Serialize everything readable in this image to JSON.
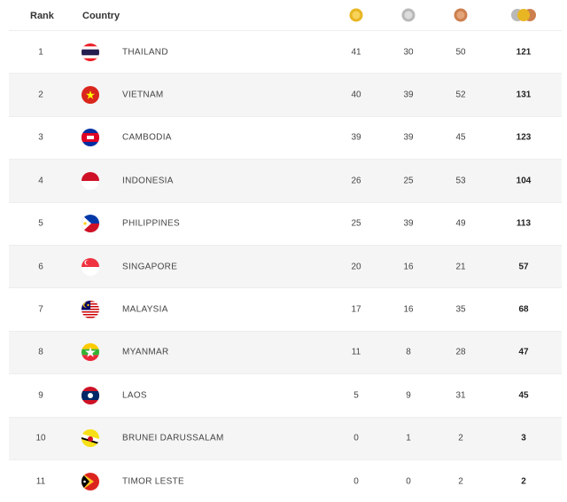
{
  "header": {
    "rank_label": "Rank",
    "country_label": "Country",
    "gold_icon": "gold-medal-icon",
    "silver_icon": "silver-medal-icon",
    "bronze_icon": "bronze-medal-icon",
    "total_icon": "total-medals-icon"
  },
  "colors": {
    "gold": "#e8b623",
    "silver": "#b9b9b9",
    "bronze": "#cd7f4e",
    "row_alt": "#f5f5f5"
  },
  "rows": [
    {
      "rank": "1",
      "country": "THAILAND",
      "flag": "thailand-flag",
      "gold": "41",
      "silver": "30",
      "bronze": "50",
      "total": "121"
    },
    {
      "rank": "2",
      "country": "VIETNAM",
      "flag": "vietnam-flag",
      "gold": "40",
      "silver": "39",
      "bronze": "52",
      "total": "131"
    },
    {
      "rank": "3",
      "country": "CAMBODIA",
      "flag": "cambodia-flag",
      "gold": "39",
      "silver": "39",
      "bronze": "45",
      "total": "123"
    },
    {
      "rank": "4",
      "country": "INDONESIA",
      "flag": "indonesia-flag",
      "gold": "26",
      "silver": "25",
      "bronze": "53",
      "total": "104"
    },
    {
      "rank": "5",
      "country": "PHILIPPINES",
      "flag": "philippines-flag",
      "gold": "25",
      "silver": "39",
      "bronze": "49",
      "total": "113"
    },
    {
      "rank": "6",
      "country": "SINGAPORE",
      "flag": "singapore-flag",
      "gold": "20",
      "silver": "16",
      "bronze": "21",
      "total": "57"
    },
    {
      "rank": "7",
      "country": "MALAYSIA",
      "flag": "malaysia-flag",
      "gold": "17",
      "silver": "16",
      "bronze": "35",
      "total": "68"
    },
    {
      "rank": "8",
      "country": "MYANMAR",
      "flag": "myanmar-flag",
      "gold": "11",
      "silver": "8",
      "bronze": "28",
      "total": "47"
    },
    {
      "rank": "9",
      "country": "LAOS",
      "flag": "laos-flag",
      "gold": "5",
      "silver": "9",
      "bronze": "31",
      "total": "45"
    },
    {
      "rank": "10",
      "country": "BRUNEI DARUSSALAM",
      "flag": "brunei-flag",
      "gold": "0",
      "silver": "1",
      "bronze": "2",
      "total": "3"
    },
    {
      "rank": "11",
      "country": "TIMOR LESTE",
      "flag": "timor-leste-flag",
      "gold": "0",
      "silver": "0",
      "bronze": "2",
      "total": "2"
    }
  ]
}
